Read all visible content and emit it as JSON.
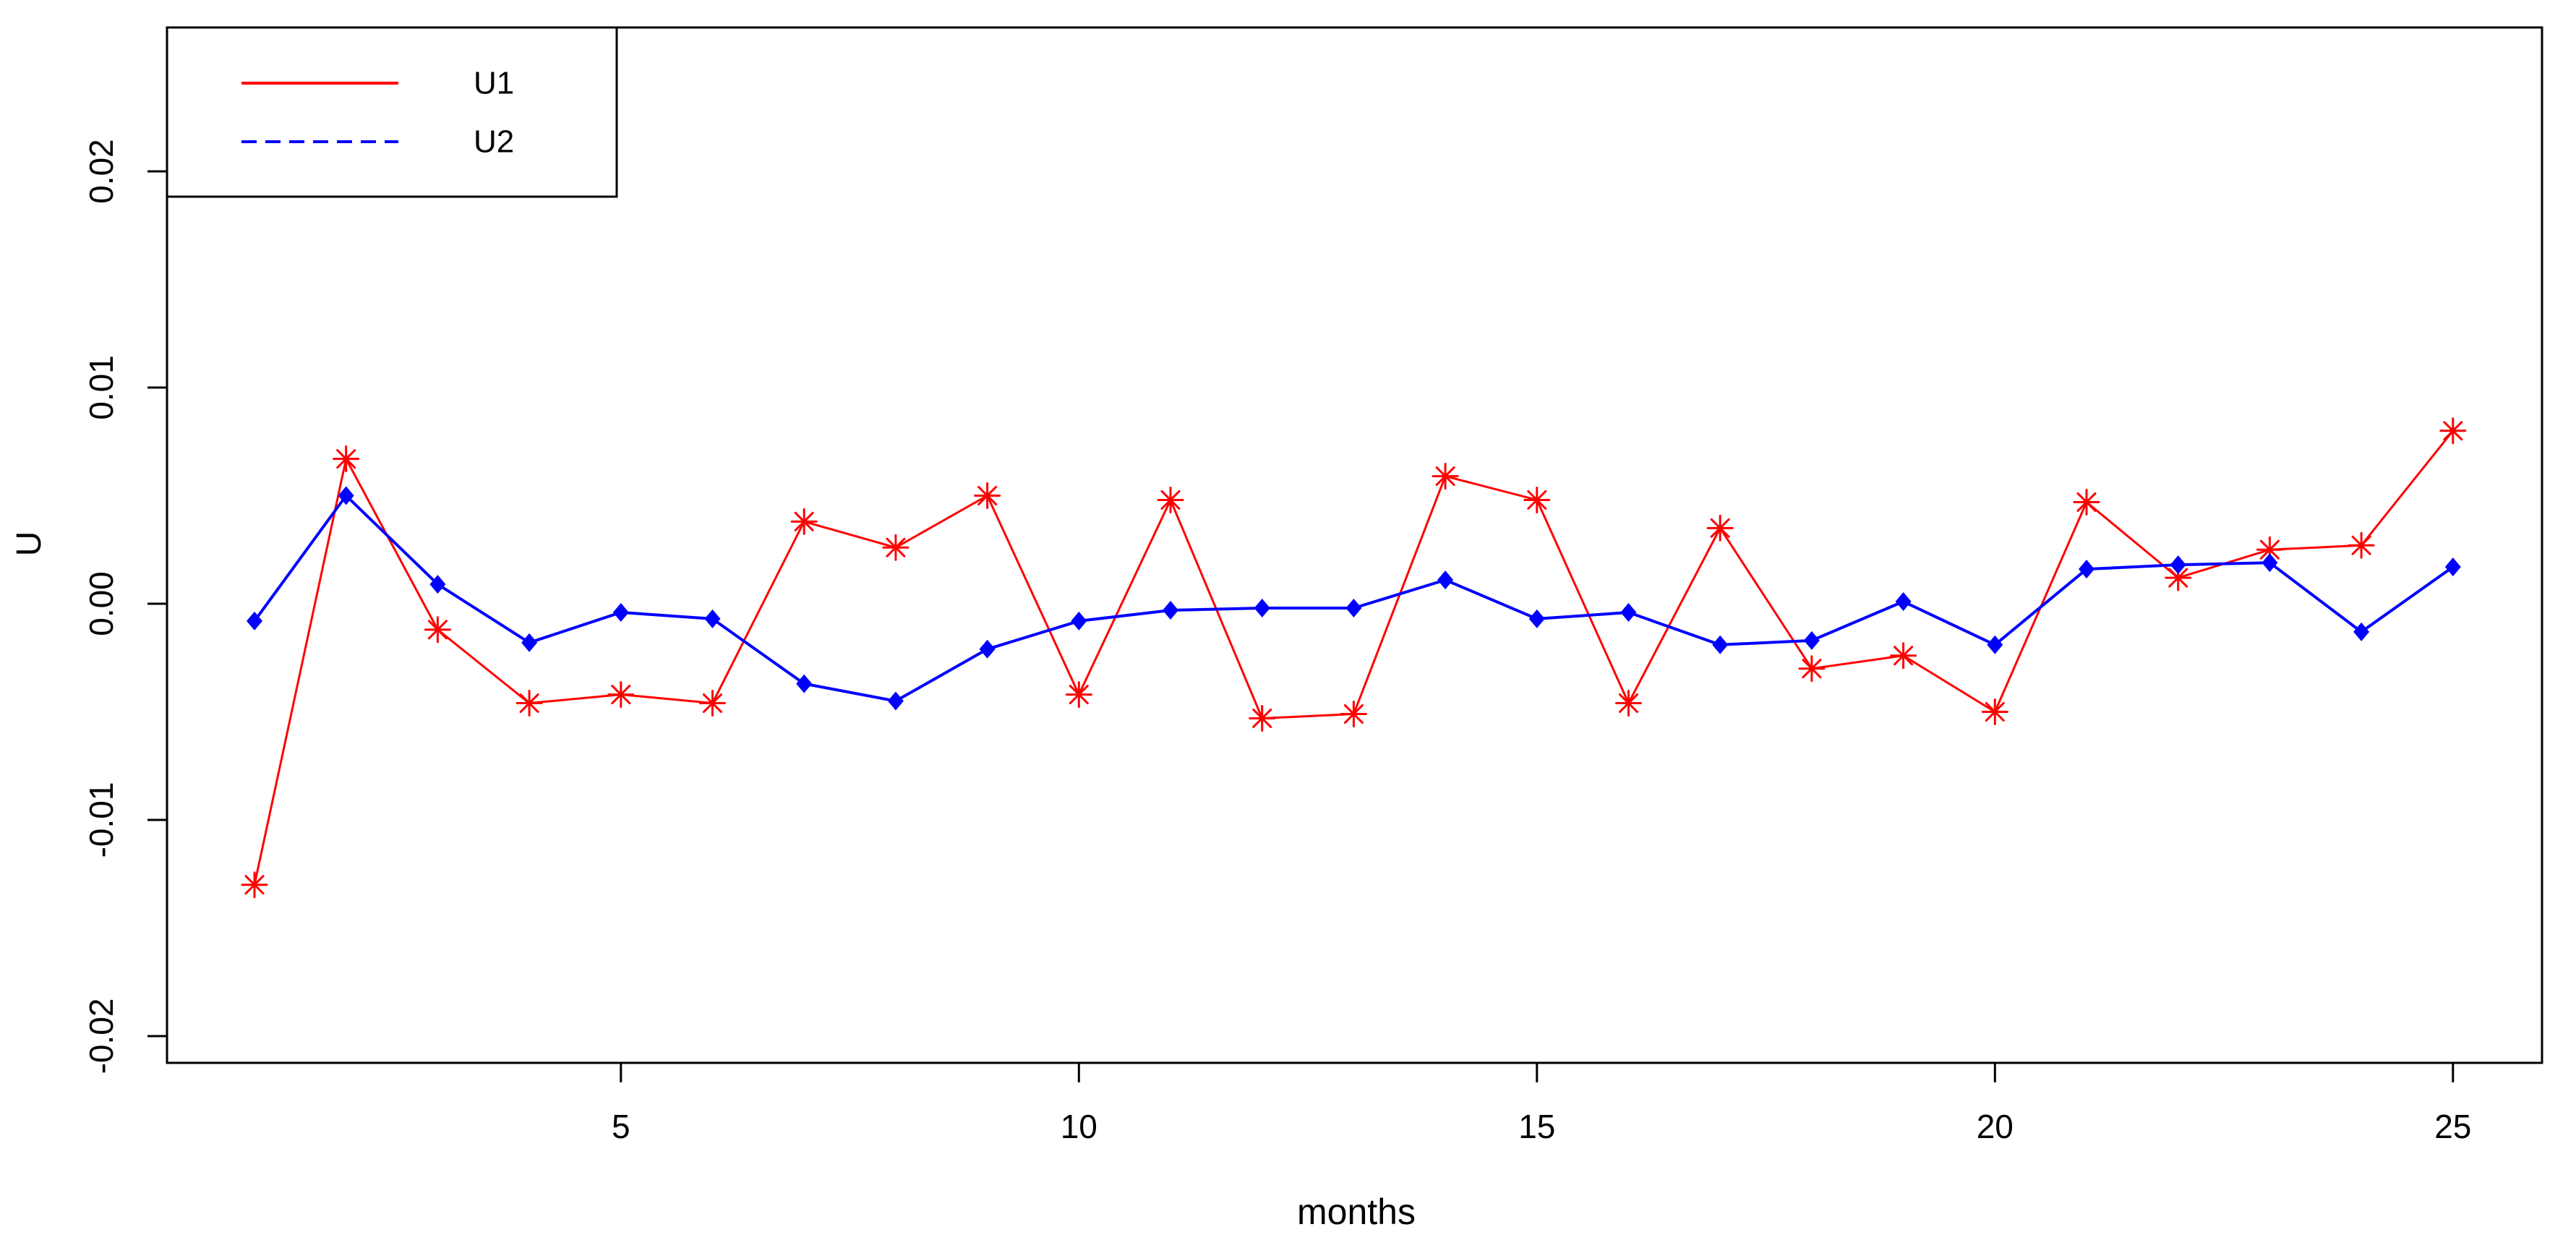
{
  "chart_data": {
    "type": "line",
    "title": "",
    "xlabel": "months",
    "ylabel": "U",
    "x": [
      1,
      2,
      3,
      4,
      5,
      6,
      7,
      8,
      9,
      10,
      11,
      12,
      13,
      14,
      15,
      16,
      17,
      18,
      19,
      20,
      21,
      22,
      23,
      24,
      25
    ],
    "xticks": [
      5,
      10,
      15,
      20,
      25
    ],
    "xtick_labels": [
      "5",
      "10",
      "15",
      "20",
      "25"
    ],
    "ytick_values": [
      0.02,
      0.01,
      0.0,
      -0.01,
      -0.02
    ],
    "ytick_labels": [
      "0.02",
      "0.01",
      "0.00",
      "-0.01",
      "-0.02"
    ],
    "xlim": [
      0,
      26
    ],
    "ylim": [
      -0.0215,
      0.0265
    ],
    "grid": false,
    "legend_position": "topleft",
    "series": [
      {
        "name": "U1",
        "color": "#ff0000",
        "line_style": "solid",
        "marker": "asterisk",
        "values": [
          -0.013,
          0.0067,
          -0.0012,
          -0.0046,
          -0.0042,
          -0.0046,
          0.0038,
          0.0026,
          0.005,
          -0.0042,
          0.0048,
          -0.0053,
          -0.0051,
          0.0059,
          0.0048,
          -0.0046,
          0.0035,
          -0.003,
          -0.0024,
          -0.005,
          0.0047,
          0.0012,
          0.0025,
          0.0027,
          0.008
        ]
      },
      {
        "name": "U2",
        "color": "#0000ff",
        "line_style": "dashed",
        "marker": "diamond",
        "values": [
          -0.0008,
          0.005,
          0.0009,
          -0.0018,
          -0.0004,
          -0.0007,
          -0.0037,
          -0.0045,
          -0.0021,
          -0.0008,
          -0.0003,
          -0.0002,
          -0.0002,
          0.0011,
          -0.0007,
          -0.0004,
          -0.0019,
          -0.0017,
          0.0001,
          -0.0019,
          0.0016,
          0.0018,
          0.0019,
          -0.0013,
          0.0017
        ]
      }
    ],
    "axis_color": "#000000",
    "background_color": "#ffffff"
  }
}
